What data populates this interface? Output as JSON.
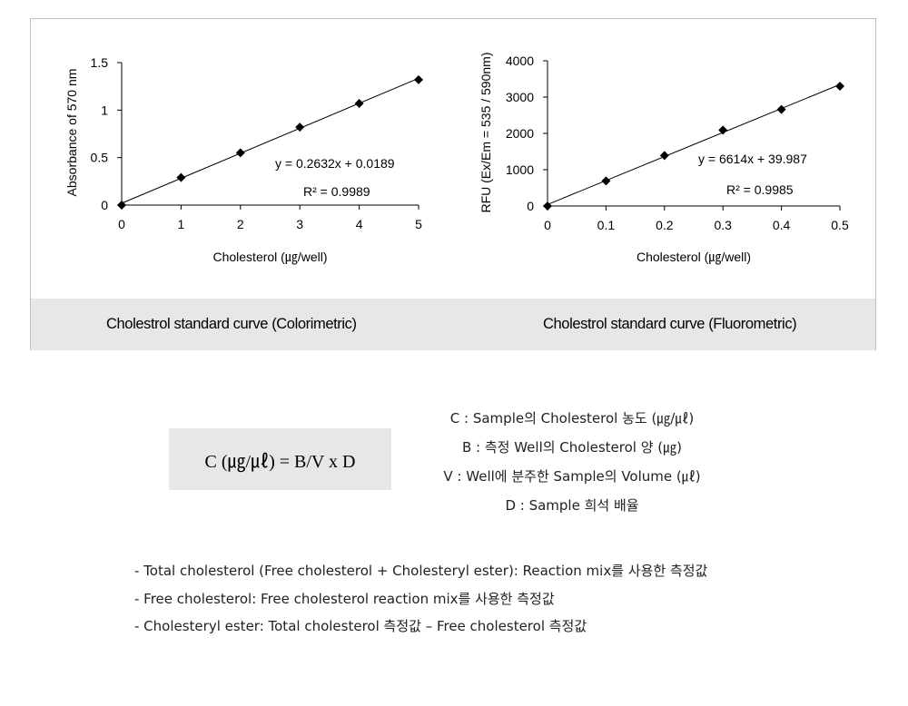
{
  "chart_data": [
    {
      "type": "scatter",
      "x": [
        0,
        1,
        2,
        3,
        4,
        5
      ],
      "y": [
        0,
        0.29,
        0.55,
        0.82,
        1.07,
        1.32
      ],
      "xlim": [
        0,
        5
      ],
      "ylim": [
        0,
        1.5
      ],
      "xticks": [
        "0",
        "1",
        "2",
        "3",
        "4",
        "5"
      ],
      "yticks": [
        "0",
        "0.5",
        "1",
        "1.5"
      ],
      "xlabel": "Cholesterol (㎍/well)",
      "ylabel": "Absorbance of 570 nm",
      "equation": "y = 0.2632x + 0.0189",
      "r2": "R² = 0.9989",
      "trendline": {
        "slope": 0.2632,
        "intercept": 0.0189
      },
      "grid": false,
      "caption": "Cholestrol standard curve (Colorimetric)"
    },
    {
      "type": "scatter",
      "x": [
        0,
        0.1,
        0.2,
        0.3,
        0.4,
        0.5
      ],
      "y": [
        0,
        690,
        1390,
        2090,
        2660,
        3300
      ],
      "xlim": [
        0,
        0.5
      ],
      "ylim": [
        0,
        4000
      ],
      "xticks": [
        "0",
        "0.1",
        "0.2",
        "0.3",
        "0.4",
        "0.5"
      ],
      "yticks": [
        "0",
        "1000",
        "2000",
        "3000",
        "4000"
      ],
      "xlabel": "Cholesterol (㎍/well)",
      "ylabel": "RFU (Ex/Em = 535 / 590nm)",
      "equation": "y = 6614x + 39.987",
      "r2": "R² = 0.9985",
      "trendline": {
        "slope": 6614,
        "intercept": 39.987
      },
      "grid": false,
      "caption": "Cholestrol standard curve (Fluorometric)"
    }
  ],
  "formula": {
    "text": "C (㎍/㎕) = B/V x D",
    "legend": [
      "C : Sample의 Cholesterol 농도 (㎍/㎕)",
      "B : 측정 Well의 Cholesterol 양 (㎍)",
      "V : Well에 분주한 Sample의 Volume (㎕)",
      "D : Sample 희석 배율"
    ]
  },
  "notes": [
    "- Total cholesterol (Free cholesterol + Cholesteryl ester): Reaction mix를 사용한 측정값",
    "- Free cholesterol: Free cholesterol reaction mix를 사용한 측정값",
    "- Cholesteryl ester: Total cholesterol 측정값 – Free cholesterol 측정값"
  ]
}
